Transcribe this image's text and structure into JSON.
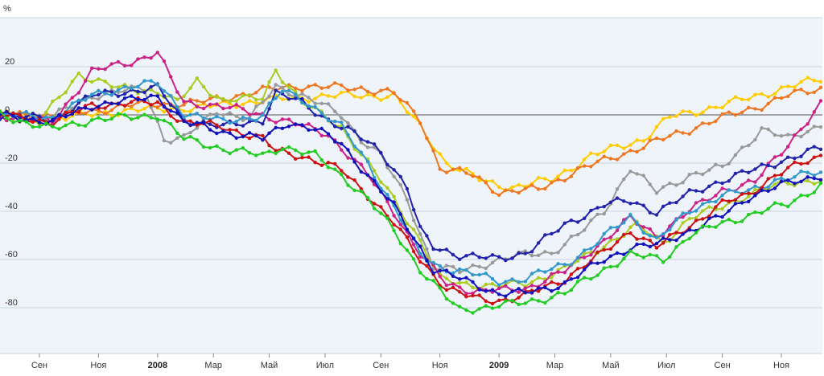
{
  "chart_data": {
    "type": "line",
    "title": "",
    "xlabel": "",
    "ylabel": "",
    "y_unit_label": "%",
    "ylim": [
      -100,
      40
    ],
    "y_ticks": [
      20,
      0,
      -20,
      -40,
      -60,
      -80
    ],
    "grid": "horizontal",
    "legend": "none",
    "x_unit": "weeks from start (weekly samples)",
    "x_range": [
      0,
      125
    ],
    "x_ticks": [
      {
        "label": "Сен",
        "x": 6,
        "bold": false
      },
      {
        "label": "Ноя",
        "x": 15,
        "bold": false
      },
      {
        "label": "2008",
        "x": 24,
        "bold": true
      },
      {
        "label": "Мар",
        "x": 32.5,
        "bold": false
      },
      {
        "label": "Май",
        "x": 41,
        "bold": false
      },
      {
        "label": "Июл",
        "x": 49.5,
        "bold": false
      },
      {
        "label": "Сен",
        "x": 58,
        "bold": false
      },
      {
        "label": "Ноя",
        "x": 67,
        "bold": false
      },
      {
        "label": "2009",
        "x": 76,
        "bold": true
      },
      {
        "label": "Мар",
        "x": 84.5,
        "bold": false
      },
      {
        "label": "Май",
        "x": 93,
        "bold": false
      },
      {
        "label": "Июл",
        "x": 101.5,
        "bold": false
      },
      {
        "label": "Сен",
        "x": 110,
        "bold": false
      },
      {
        "label": "Ноя",
        "x": 119,
        "bold": false
      }
    ],
    "series": [
      {
        "color": "#ffcc00",
        "points": [
          [
            0,
            0
          ],
          [
            10,
            -1
          ],
          [
            20,
            2
          ],
          [
            30,
            3
          ],
          [
            40,
            6
          ],
          [
            50,
            8
          ],
          [
            60,
            8
          ],
          [
            64,
            -5
          ],
          [
            68,
            -20
          ],
          [
            74,
            -28
          ],
          [
            78,
            -30
          ],
          [
            84,
            -27
          ],
          [
            90,
            -17
          ],
          [
            98,
            -10
          ],
          [
            102,
            -1
          ],
          [
            110,
            4
          ],
          [
            118,
            10
          ],
          [
            125,
            15
          ]
        ]
      },
      {
        "color": "#ee7722",
        "points": [
          [
            0,
            0
          ],
          [
            10,
            0
          ],
          [
            20,
            4
          ],
          [
            30,
            5
          ],
          [
            40,
            10
          ],
          [
            45,
            12
          ],
          [
            55,
            11
          ],
          [
            60,
            9
          ],
          [
            64,
            -2
          ],
          [
            67,
            -22
          ],
          [
            72,
            -25
          ],
          [
            76,
            -32
          ],
          [
            82,
            -31
          ],
          [
            88,
            -23
          ],
          [
            96,
            -15
          ],
          [
            100,
            -11
          ],
          [
            108,
            -3
          ],
          [
            116,
            4
          ],
          [
            120,
            8
          ],
          [
            125,
            11
          ]
        ]
      },
      {
        "color": "#999999",
        "points": [
          [
            0,
            0
          ],
          [
            8,
            -1
          ],
          [
            14,
            8
          ],
          [
            22,
            11
          ],
          [
            25,
            -10
          ],
          [
            28,
            -10
          ],
          [
            33,
            2
          ],
          [
            38,
            -2
          ],
          [
            42,
            12
          ],
          [
            46,
            8
          ],
          [
            52,
            0
          ],
          [
            55,
            -10
          ],
          [
            58,
            -17
          ],
          [
            62,
            -35
          ],
          [
            66,
            -63
          ],
          [
            70,
            -65
          ],
          [
            76,
            -60
          ],
          [
            80,
            -58
          ],
          [
            84,
            -57
          ],
          [
            88,
            -50
          ],
          [
            92,
            -40
          ],
          [
            96,
            -22
          ],
          [
            100,
            -32
          ],
          [
            105,
            -25
          ],
          [
            110,
            -22
          ],
          [
            116,
            -6
          ],
          [
            120,
            -10
          ],
          [
            125,
            -4
          ]
        ]
      },
      {
        "color": "#aacc22",
        "points": [
          [
            0,
            0
          ],
          [
            6,
            -3
          ],
          [
            12,
            17
          ],
          [
            18,
            11
          ],
          [
            24,
            10
          ],
          [
            27,
            5
          ],
          [
            30,
            14
          ],
          [
            34,
            6
          ],
          [
            40,
            7
          ],
          [
            42,
            19
          ],
          [
            46,
            5
          ],
          [
            52,
            -5
          ],
          [
            56,
            -20
          ],
          [
            60,
            -35
          ],
          [
            64,
            -52
          ],
          [
            67,
            -68
          ],
          [
            70,
            -70
          ],
          [
            76,
            -71
          ],
          [
            80,
            -70
          ],
          [
            86,
            -64
          ],
          [
            92,
            -54
          ],
          [
            97,
            -46
          ],
          [
            101,
            -53
          ],
          [
            105,
            -43
          ],
          [
            110,
            -38
          ],
          [
            114,
            -33
          ],
          [
            120,
            -28
          ],
          [
            125,
            -27
          ]
        ]
      },
      {
        "color": "#cc2288",
        "points": [
          [
            0,
            0
          ],
          [
            8,
            -3
          ],
          [
            14,
            18
          ],
          [
            20,
            22
          ],
          [
            24,
            26
          ],
          [
            26,
            15
          ],
          [
            28,
            5
          ],
          [
            33,
            4
          ],
          [
            40,
            0
          ],
          [
            44,
            -3
          ],
          [
            50,
            -8
          ],
          [
            56,
            -25
          ],
          [
            60,
            -40
          ],
          [
            64,
            -58
          ],
          [
            68,
            -70
          ],
          [
            72,
            -73
          ],
          [
            76,
            -73
          ],
          [
            80,
            -72
          ],
          [
            86,
            -65
          ],
          [
            92,
            -52
          ],
          [
            96,
            -43
          ],
          [
            100,
            -50
          ],
          [
            105,
            -40
          ],
          [
            110,
            -31
          ],
          [
            115,
            -28
          ],
          [
            120,
            -12
          ],
          [
            125,
            4
          ]
        ]
      },
      {
        "color": "#2222aa",
        "points": [
          [
            0,
            0
          ],
          [
            8,
            -2
          ],
          [
            14,
            8
          ],
          [
            20,
            10
          ],
          [
            24,
            11
          ],
          [
            28,
            -2
          ],
          [
            34,
            -5
          ],
          [
            40,
            -2
          ],
          [
            42,
            9
          ],
          [
            46,
            5
          ],
          [
            50,
            -2
          ],
          [
            54,
            -8
          ],
          [
            58,
            -15
          ],
          [
            62,
            -30
          ],
          [
            64,
            -48
          ],
          [
            66,
            -55
          ],
          [
            70,
            -58
          ],
          [
            76,
            -60
          ],
          [
            80,
            -57
          ],
          [
            86,
            -46
          ],
          [
            92,
            -37
          ],
          [
            96,
            -36
          ],
          [
            100,
            -40
          ],
          [
            105,
            -33
          ],
          [
            110,
            -27
          ],
          [
            116,
            -22
          ],
          [
            120,
            -18
          ],
          [
            125,
            -14
          ]
        ]
      },
      {
        "color": "#3399cc",
        "points": [
          [
            0,
            0
          ],
          [
            8,
            -1
          ],
          [
            14,
            8
          ],
          [
            20,
            12
          ],
          [
            24,
            13
          ],
          [
            28,
            1
          ],
          [
            34,
            -3
          ],
          [
            40,
            0
          ],
          [
            43,
            10
          ],
          [
            47,
            5
          ],
          [
            52,
            -5
          ],
          [
            56,
            -20
          ],
          [
            60,
            -38
          ],
          [
            64,
            -58
          ],
          [
            67,
            -63
          ],
          [
            72,
            -66
          ],
          [
            76,
            -69
          ],
          [
            80,
            -68
          ],
          [
            86,
            -62
          ],
          [
            90,
            -55
          ],
          [
            96,
            -42
          ],
          [
            100,
            -52
          ],
          [
            105,
            -40
          ],
          [
            110,
            -33
          ],
          [
            114,
            -32
          ],
          [
            118,
            -27
          ],
          [
            125,
            -24
          ]
        ]
      },
      {
        "color": "#cc1111",
        "points": [
          [
            0,
            0
          ],
          [
            8,
            -3
          ],
          [
            14,
            4
          ],
          [
            20,
            5
          ],
          [
            24,
            5
          ],
          [
            28,
            -3
          ],
          [
            34,
            -5
          ],
          [
            40,
            -10
          ],
          [
            42,
            -15
          ],
          [
            46,
            -17
          ],
          [
            52,
            -23
          ],
          [
            56,
            -33
          ],
          [
            60,
            -45
          ],
          [
            64,
            -60
          ],
          [
            68,
            -72
          ],
          [
            72,
            -76
          ],
          [
            76,
            -77
          ],
          [
            80,
            -75
          ],
          [
            86,
            -68
          ],
          [
            92,
            -57
          ],
          [
            96,
            -48
          ],
          [
            100,
            -55
          ],
          [
            105,
            -46
          ],
          [
            110,
            -37
          ],
          [
            114,
            -33
          ],
          [
            118,
            -25
          ],
          [
            125,
            -17
          ]
        ]
      },
      {
        "color": "#1111bb",
        "points": [
          [
            0,
            0
          ],
          [
            8,
            -3
          ],
          [
            14,
            4
          ],
          [
            20,
            6
          ],
          [
            24,
            8
          ],
          [
            28,
            -3
          ],
          [
            34,
            -7
          ],
          [
            40,
            -10
          ],
          [
            44,
            -3
          ],
          [
            48,
            -6
          ],
          [
            52,
            -12
          ],
          [
            56,
            -25
          ],
          [
            60,
            -38
          ],
          [
            64,
            -55
          ],
          [
            66,
            -64
          ],
          [
            70,
            -68
          ],
          [
            76,
            -74
          ],
          [
            80,
            -74
          ],
          [
            86,
            -70
          ],
          [
            92,
            -60
          ],
          [
            96,
            -55
          ],
          [
            100,
            -54
          ],
          [
            105,
            -48
          ],
          [
            110,
            -42
          ],
          [
            114,
            -34
          ],
          [
            118,
            -30
          ],
          [
            125,
            -25
          ]
        ]
      },
      {
        "color": "#22cc22",
        "points": [
          [
            0,
            0
          ],
          [
            8,
            -6
          ],
          [
            14,
            -2
          ],
          [
            20,
            -1
          ],
          [
            24,
            0
          ],
          [
            28,
            -10
          ],
          [
            34,
            -14
          ],
          [
            40,
            -17
          ],
          [
            43,
            -13
          ],
          [
            48,
            -17
          ],
          [
            52,
            -25
          ],
          [
            56,
            -35
          ],
          [
            60,
            -48
          ],
          [
            64,
            -64
          ],
          [
            68,
            -76
          ],
          [
            70,
            -81
          ],
          [
            76,
            -79
          ],
          [
            80,
            -78
          ],
          [
            86,
            -74
          ],
          [
            92,
            -64
          ],
          [
            96,
            -58
          ],
          [
            101,
            -60
          ],
          [
            105,
            -50
          ],
          [
            110,
            -45
          ],
          [
            116,
            -40
          ],
          [
            120,
            -37
          ],
          [
            125,
            -29
          ]
        ]
      }
    ]
  }
}
